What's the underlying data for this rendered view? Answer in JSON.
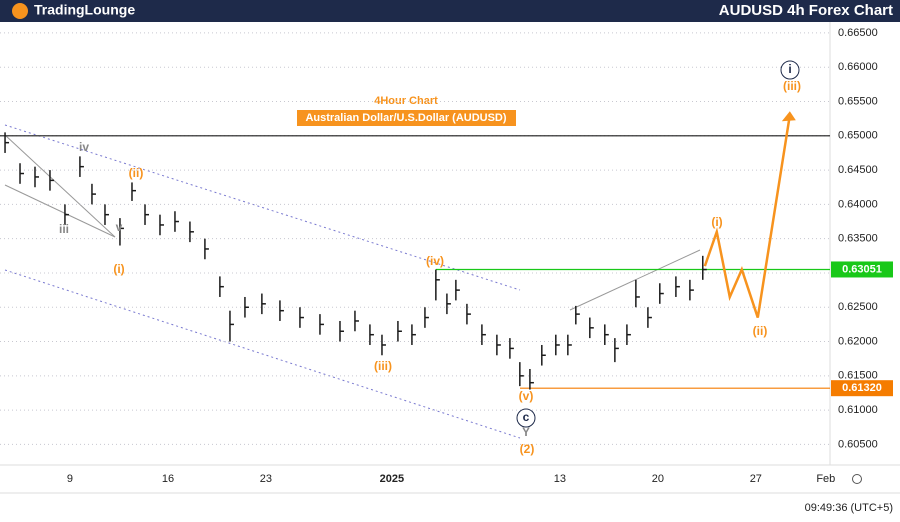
{
  "header": {
    "logo": "TradingLounge",
    "title": "AUDUSD 4h Forex Chart"
  },
  "chart_data": {
    "type": "ohlc",
    "title": "4Hour Chart",
    "subtitle": "Australian Dollar/U.S.Dollar (AUDUSD)",
    "bar_color": "#1a1a1a",
    "x": [
      3.36,
      4.43,
      5.5,
      6.57,
      7.64,
      8.71,
      9.57,
      10.5,
      11.57,
      12.43,
      13.36,
      14.43,
      15.5,
      16.57,
      17.64,
      18.71,
      19.43,
      20.5,
      21.71,
      23,
      24.43,
      25.86,
      27.29,
      28.36,
      29.43,
      30.29,
      31.43,
      32.43,
      33.36,
      34.14,
      34.93,
      35.57,
      36.36,
      37.43,
      38.5,
      39.43,
      40.14,
      40.86,
      41.71,
      42.71,
      43.57,
      44.14,
      45.14,
      46.21,
      46.93,
      47.79,
      48.43,
      49.29,
      50.14,
      51.29,
      52.29,
      53.21
    ],
    "high": [
      0.6505,
      0.646,
      0.6455,
      0.645,
      0.64,
      0.647,
      0.643,
      0.64,
      0.638,
      0.6432,
      0.64,
      0.6385,
      0.639,
      0.6375,
      0.635,
      0.6295,
      0.6245,
      0.6265,
      0.627,
      0.626,
      0.625,
      0.624,
      0.623,
      0.6245,
      0.6225,
      0.621,
      0.623,
      0.6225,
      0.625,
      0.6305,
      0.627,
      0.629,
      0.6255,
      0.6225,
      0.621,
      0.6205,
      0.617,
      0.616,
      0.6195,
      0.621,
      0.621,
      0.6252,
      0.6235,
      0.6225,
      0.6205,
      0.6225,
      0.629,
      0.625,
      0.6285,
      0.6295,
      0.629,
      0.6325
    ],
    "low": [
      0.6475,
      0.643,
      0.6425,
      0.642,
      0.637,
      0.644,
      0.64,
      0.637,
      0.634,
      0.6405,
      0.637,
      0.6355,
      0.636,
      0.6345,
      0.632,
      0.6265,
      0.62,
      0.6235,
      0.624,
      0.623,
      0.622,
      0.621,
      0.62,
      0.6215,
      0.6195,
      0.618,
      0.62,
      0.6195,
      0.622,
      0.626,
      0.624,
      0.626,
      0.6225,
      0.6195,
      0.618,
      0.6175,
      0.6135,
      0.613,
      0.6165,
      0.618,
      0.618,
      0.6225,
      0.6205,
      0.6195,
      0.617,
      0.6195,
      0.625,
      0.622,
      0.6255,
      0.6265,
      0.626,
      0.629
    ],
    "close": [
      0.649,
      0.6445,
      0.644,
      0.6435,
      0.6385,
      0.6455,
      0.6415,
      0.6385,
      0.6365,
      0.642,
      0.6385,
      0.637,
      0.6375,
      0.636,
      0.6335,
      0.628,
      0.6225,
      0.625,
      0.6255,
      0.6245,
      0.6235,
      0.6225,
      0.6215,
      0.623,
      0.621,
      0.6195,
      0.6215,
      0.621,
      0.6235,
      0.629,
      0.6255,
      0.6275,
      0.624,
      0.621,
      0.6195,
      0.619,
      0.615,
      0.614,
      0.618,
      0.6195,
      0.6195,
      0.624,
      0.622,
      0.621,
      0.619,
      0.621,
      0.6265,
      0.6235,
      0.627,
      0.628,
      0.6275,
      0.6305
    ],
    "projection": {
      "color": "#f7931e",
      "x": [
        53.36,
        54.21,
        55.14,
        56,
        57.14,
        59.43
      ],
      "values": [
        0.631,
        0.636,
        0.6265,
        0.6305,
        0.6235,
        0.653
      ]
    },
    "levels": [
      {
        "value": 0.65,
        "color": "#1a1a1a"
      },
      {
        "value": 0.63051,
        "label": "0.63051",
        "color": "#19c819"
      },
      {
        "value": 0.6132,
        "label": "0.61320",
        "color": "#f57c00"
      }
    ],
    "annotations": [
      {
        "text": "iv",
        "color": "#888888"
      },
      {
        "text": "iii",
        "color": "#888888"
      },
      {
        "text": "v",
        "color": "#888888"
      },
      {
        "text": "(i)",
        "color": "#f7931e"
      },
      {
        "text": "(ii)",
        "color": "#f7931e"
      },
      {
        "text": "(iii)",
        "color": "#f7931e"
      },
      {
        "text": "(iv)",
        "color": "#f7931e"
      },
      {
        "text": "(v)",
        "color": "#f7931e"
      },
      {
        "text": "c",
        "color": "#1e2a4a"
      },
      {
        "text": "Y",
        "color": "#888888"
      },
      {
        "text": "(2)",
        "color": "#f7931e"
      },
      {
        "text": "(i)",
        "color": "#f7931e"
      },
      {
        "text": "(ii)",
        "color": "#f7931e"
      },
      {
        "text": "i",
        "color": "#1e2a4a"
      },
      {
        "text": "(iii)",
        "color": "#f7931e"
      }
    ],
    "xlim": [
      3,
      62.3
    ],
    "xticks": [
      {
        "value": 8,
        "label": "9"
      },
      {
        "value": 15,
        "label": "16"
      },
      {
        "value": 22,
        "label": "23"
      },
      {
        "value": 31,
        "label": "2025"
      },
      {
        "value": 43,
        "label": "13"
      },
      {
        "value": 50,
        "label": "20"
      },
      {
        "value": 57,
        "label": "27"
      },
      {
        "value": 62,
        "label": "Feb"
      }
    ],
    "ylim": [
      0.602,
      0.6698
    ],
    "yticks": [
      {
        "value": 0.605,
        "label": "0.60500"
      },
      {
        "value": 0.61,
        "label": "0.61000"
      },
      {
        "value": 0.615,
        "label": "0.61500"
      },
      {
        "value": 0.62,
        "label": "0.62000"
      },
      {
        "value": 0.625,
        "label": "0.62500"
      },
      {
        "value": 0.63,
        "label": "0.63000"
      },
      {
        "value": 0.635,
        "label": "0.63500"
      },
      {
        "value": 0.64,
        "label": "0.64000"
      },
      {
        "value": 0.645,
        "label": "0.64500"
      },
      {
        "value": 0.65,
        "label": "0.65000"
      },
      {
        "value": 0.655,
        "label": "0.65500"
      },
      {
        "value": 0.66,
        "label": "0.66000"
      },
      {
        "value": 0.665,
        "label": "0.66500"
      }
    ],
    "grid": true
  },
  "footer": {
    "time": "09:49:36 (UTC+5)"
  }
}
